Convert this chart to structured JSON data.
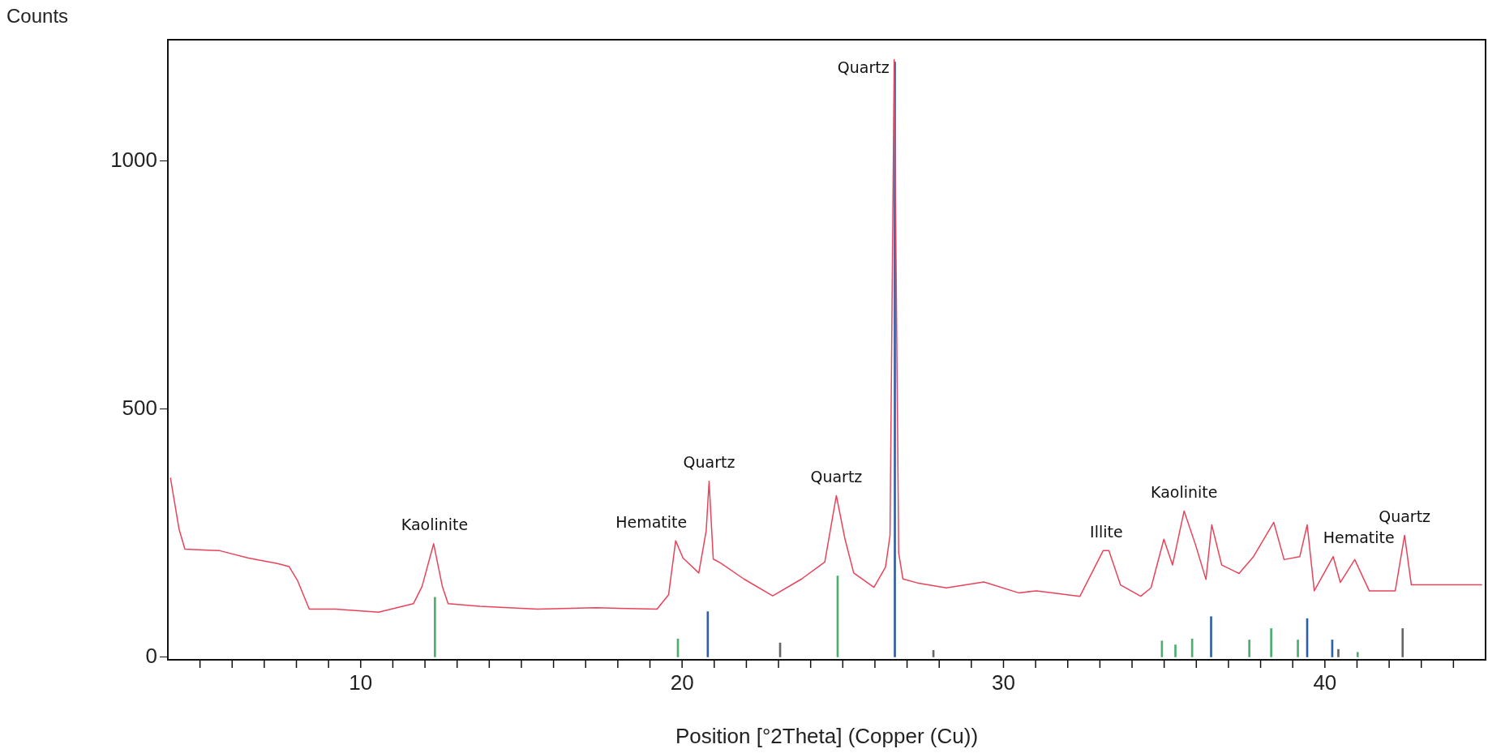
{
  "chart_data": {
    "type": "line",
    "xlabel": "Position [°2Theta] (Copper (Cu))",
    "ylabel": "Counts",
    "xlim": [
      4,
      45
    ],
    "ylim": [
      -5,
      1245
    ],
    "xticks": [
      {
        "value": 5,
        "label": null
      },
      {
        "value": 6,
        "label": null
      },
      {
        "value": 7,
        "label": null
      },
      {
        "value": 8,
        "label": null
      },
      {
        "value": 9,
        "label": null
      },
      10,
      {
        "value": 11,
        "label": null
      },
      {
        "value": 12,
        "label": null
      },
      {
        "value": 13,
        "label": null
      },
      {
        "value": 14,
        "label": null
      },
      {
        "value": 15,
        "label": null
      },
      {
        "value": 16,
        "label": null
      },
      {
        "value": 17,
        "label": null
      },
      {
        "value": 18,
        "label": null
      },
      {
        "value": 19,
        "label": null
      },
      20,
      {
        "value": 21,
        "label": null
      },
      {
        "value": 22,
        "label": null
      },
      {
        "value": 23,
        "label": null
      },
      {
        "value": 24,
        "label": null
      },
      {
        "value": 25,
        "label": null
      },
      {
        "value": 26,
        "label": null
      },
      {
        "value": 27,
        "label": null
      },
      {
        "value": 28,
        "label": null
      },
      {
        "value": 29,
        "label": null
      },
      30,
      {
        "value": 31,
        "label": null
      },
      {
        "value": 32,
        "label": null
      },
      {
        "value": 33,
        "label": null
      },
      {
        "value": 34,
        "label": null
      },
      {
        "value": 35,
        "label": null
      },
      {
        "value": 36,
        "label": null
      },
      {
        "value": 37,
        "label": null
      },
      {
        "value": 38,
        "label": null
      },
      {
        "value": 39,
        "label": null
      },
      40,
      {
        "value": 41,
        "label": null
      },
      {
        "value": 42,
        "label": null
      },
      {
        "value": 43,
        "label": null
      },
      {
        "value": 44,
        "label": null
      }
    ],
    "yticks": [
      0,
      500,
      1000
    ],
    "grid": false,
    "legend": false,
    "series": [
      {
        "color": "#e8435a",
        "x": [
          4.08,
          4.35,
          4.53,
          5.61,
          6.51,
          7.41,
          7.77,
          8.04,
          8.4,
          9.21,
          10.56,
          11.64,
          11.91,
          12.27,
          12.54,
          12.72,
          13.71,
          15.51,
          17.31,
          19.22,
          19.58,
          19.8,
          20.03,
          20.52,
          20.75,
          20.84,
          20.97,
          21.2,
          21.92,
          22.82,
          23.72,
          24.44,
          24.8,
          25.07,
          25.34,
          25.97,
          26.33,
          26.47,
          26.6,
          26.74,
          26.87,
          27.32,
          28.22,
          29.39,
          30.47,
          31.03,
          32.38,
          33.1,
          33.28,
          33.64,
          34.27,
          34.59,
          34.99,
          35.26,
          35.62,
          35.98,
          36.3,
          36.48,
          36.79,
          37.33,
          37.78,
          38.41,
          38.73,
          39.22,
          39.45,
          39.67,
          40.26,
          40.48,
          40.93,
          41.38,
          42.19,
          42.48,
          42.69,
          43.63,
          44.89
        ],
        "values": [
          362,
          258,
          218,
          215,
          200,
          189,
          183,
          154,
          97,
          97,
          91,
          108,
          143,
          229,
          143,
          108,
          103,
          97,
          100,
          97,
          126,
          235,
          200,
          170,
          255,
          355,
          198,
          190,
          158,
          124,
          158,
          192,
          326,
          238,
          170,
          141,
          182,
          246,
          1205,
          210,
          158,
          150,
          140,
          152,
          130,
          134,
          123,
          215,
          215,
          146,
          123,
          140,
          238,
          186,
          295,
          226,
          157,
          267,
          186,
          169,
          203,
          272,
          197,
          203,
          267,
          134,
          203,
          151,
          197,
          134,
          134,
          246,
          146,
          146,
          146
        ]
      },
      {
        "type": "bar",
        "x": [
          12.31,
          19.87,
          20.8,
          23.05,
          24.84,
          26.62,
          27.82,
          34.93,
          35.35,
          35.87,
          36.46,
          37.65,
          38.33,
          39.16,
          39.45,
          40.23,
          40.42,
          41.02,
          42.42
        ],
        "values": [
          121,
          37,
          92,
          29,
          164,
          1200,
          14,
          33,
          25,
          37,
          82,
          35,
          58,
          35,
          78,
          35,
          16,
          10,
          58
        ],
        "colors": [
          "#4caf6e",
          "#4caf6e",
          "#2f5fa8",
          "#666666",
          "#4caf6e",
          "#2f5fa8",
          "#666666",
          "#4caf6e",
          "#4caf6e",
          "#4caf6e",
          "#2f5fa8",
          "#4caf6e",
          "#4caf6e",
          "#4caf6e",
          "#2f5fa8",
          "#2f5fa8",
          "#666666",
          "#4caf6e",
          "#666666"
        ]
      }
    ],
    "annotations": [
      {
        "text": "Kaolinite",
        "x": 12.3,
        "y": 229
      },
      {
        "text": "Hematite",
        "x": 19.8,
        "y": 235
      },
      {
        "text": "Quartz",
        "x": 20.84,
        "y": 355
      },
      {
        "text": "Quartz",
        "x": 24.8,
        "y": 326
      },
      {
        "text": "Quartz",
        "x": 26.6,
        "y": 1205
      },
      {
        "text": "Illite",
        "x": 33.2,
        "y": 215
      },
      {
        "text": "Kaolinite",
        "x": 35.62,
        "y": 295
      },
      {
        "text": "Hematite",
        "x": 40.3,
        "y": 203
      },
      {
        "text": "Quartz",
        "x": 42.48,
        "y": 246
      }
    ]
  }
}
